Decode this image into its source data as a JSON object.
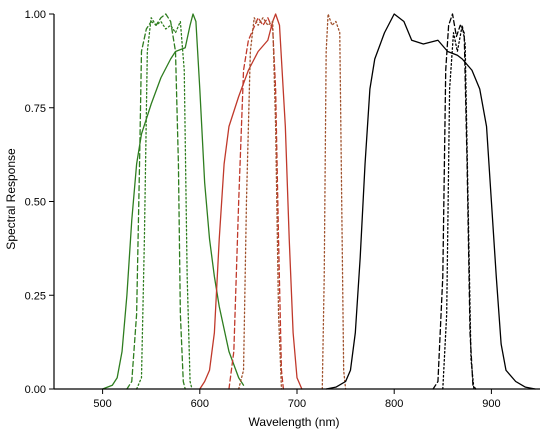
{
  "chart_data": {
    "type": "line",
    "title": "",
    "xlabel": "Wavelength (nm)",
    "ylabel": "Spectral Response",
    "xlim": [
      450,
      950
    ],
    "ylim": [
      0,
      1
    ],
    "x_ticks": [
      "500",
      "600",
      "700",
      "800",
      "900"
    ],
    "y_ticks": [
      "0.00",
      "0.25",
      "0.50",
      "0.75",
      "1.00"
    ],
    "grid": false,
    "legend": "none",
    "series": [
      {
        "color": "#2e7d1f",
        "dash": "solid",
        "points": [
          [
            500,
            0
          ],
          [
            510,
            0.01
          ],
          [
            515,
            0.03
          ],
          [
            520,
            0.1
          ],
          [
            525,
            0.25
          ],
          [
            530,
            0.45
          ],
          [
            535,
            0.6
          ],
          [
            540,
            0.68
          ],
          [
            550,
            0.76
          ],
          [
            560,
            0.83
          ],
          [
            570,
            0.88
          ],
          [
            575,
            0.9
          ],
          [
            585,
            0.91
          ],
          [
            590,
            0.97
          ],
          [
            593,
            1.0
          ],
          [
            596,
            0.98
          ],
          [
            600,
            0.8
          ],
          [
            605,
            0.55
          ],
          [
            610,
            0.4
          ],
          [
            615,
            0.3
          ],
          [
            620,
            0.22
          ],
          [
            630,
            0.1
          ],
          [
            640,
            0.03
          ],
          [
            645,
            0.01
          ]
        ]
      },
      {
        "color": "#2e7d1f",
        "dash": "dashed",
        "points": [
          [
            525,
            0
          ],
          [
            530,
            0.02
          ],
          [
            535,
            0.2
          ],
          [
            538,
            0.6
          ],
          [
            540,
            0.9
          ],
          [
            545,
            0.96
          ],
          [
            550,
            0.98
          ],
          [
            555,
            0.97
          ],
          [
            560,
            0.99
          ],
          [
            565,
            1.0
          ],
          [
            570,
            0.98
          ],
          [
            575,
            0.9
          ],
          [
            578,
            0.6
          ],
          [
            580,
            0.2
          ],
          [
            583,
            0.02
          ],
          [
            585,
            0
          ]
        ]
      },
      {
        "color": "#2e7d1f",
        "dash": "dotted",
        "points": [
          [
            535,
            0
          ],
          [
            540,
            0.03
          ],
          [
            543,
            0.4
          ],
          [
            546,
            0.9
          ],
          [
            550,
            0.99
          ],
          [
            555,
            0.97
          ],
          [
            560,
            0.98
          ],
          [
            565,
            0.96
          ],
          [
            570,
            0.97
          ],
          [
            575,
            0.95
          ],
          [
            580,
            0.98
          ],
          [
            584,
            0.85
          ],
          [
            587,
            0.3
          ],
          [
            590,
            0.02
          ],
          [
            592,
            0
          ]
        ]
      },
      {
        "color": "#c0392b",
        "dash": "solid",
        "points": [
          [
            600,
            0
          ],
          [
            605,
            0.02
          ],
          [
            610,
            0.05
          ],
          [
            615,
            0.15
          ],
          [
            620,
            0.4
          ],
          [
            625,
            0.6
          ],
          [
            630,
            0.7
          ],
          [
            640,
            0.78
          ],
          [
            650,
            0.85
          ],
          [
            660,
            0.9
          ],
          [
            670,
            0.93
          ],
          [
            675,
            0.98
          ],
          [
            678,
            1.0
          ],
          [
            682,
            0.97
          ],
          [
            688,
            0.7
          ],
          [
            692,
            0.4
          ],
          [
            696,
            0.15
          ],
          [
            700,
            0.03
          ],
          [
            705,
            0
          ]
        ]
      },
      {
        "color": "#c0392b",
        "dash": "dashed",
        "points": [
          [
            630,
            0
          ],
          [
            635,
            0.1
          ],
          [
            640,
            0.5
          ],
          [
            645,
            0.85
          ],
          [
            650,
            0.93
          ],
          [
            655,
            0.96
          ],
          [
            660,
            0.99
          ],
          [
            665,
            0.97
          ],
          [
            670,
            0.99
          ],
          [
            675,
            0.96
          ],
          [
            678,
            0.8
          ],
          [
            681,
            0.4
          ],
          [
            684,
            0.05
          ],
          [
            686,
            0
          ]
        ]
      },
      {
        "color": "#a0522d",
        "dash": "dotted",
        "points": [
          [
            640,
            0
          ],
          [
            645,
            0.05
          ],
          [
            648,
            0.5
          ],
          [
            652,
            0.9
          ],
          [
            656,
            0.99
          ],
          [
            660,
            0.97
          ],
          [
            665,
            0.99
          ],
          [
            670,
            0.97
          ],
          [
            675,
            0.98
          ],
          [
            678,
            0.7
          ],
          [
            681,
            0.2
          ],
          [
            684,
            0
          ]
        ]
      },
      {
        "color": "#a0522d",
        "dash": "dotted",
        "points": [
          [
            726,
            0
          ],
          [
            728,
            0.3
          ],
          [
            730,
            0.9
          ],
          [
            732,
            1.0
          ],
          [
            736,
            0.97
          ],
          [
            740,
            0.98
          ],
          [
            744,
            0.95
          ],
          [
            746,
            0.5
          ],
          [
            748,
            0.05
          ],
          [
            750,
            0
          ]
        ]
      },
      {
        "color": "#000000",
        "dash": "solid",
        "points": [
          [
            730,
            0
          ],
          [
            740,
            0.005
          ],
          [
            750,
            0.02
          ],
          [
            755,
            0.05
          ],
          [
            760,
            0.15
          ],
          [
            765,
            0.35
          ],
          [
            770,
            0.6
          ],
          [
            775,
            0.8
          ],
          [
            780,
            0.88
          ],
          [
            790,
            0.95
          ],
          [
            800,
            1.0
          ],
          [
            810,
            0.98
          ],
          [
            818,
            0.93
          ],
          [
            830,
            0.92
          ],
          [
            845,
            0.93
          ],
          [
            855,
            0.9
          ],
          [
            865,
            0.89
          ],
          [
            870,
            0.88
          ],
          [
            880,
            0.85
          ],
          [
            888,
            0.8
          ],
          [
            895,
            0.7
          ],
          [
            900,
            0.5
          ],
          [
            905,
            0.3
          ],
          [
            910,
            0.12
          ],
          [
            915,
            0.05
          ],
          [
            925,
            0.02
          ],
          [
            935,
            0.005
          ],
          [
            945,
            0
          ]
        ]
      },
      {
        "color": "#000000",
        "dash": "dashed",
        "points": [
          [
            840,
            0
          ],
          [
            845,
            0.02
          ],
          [
            850,
            0.3
          ],
          [
            853,
            0.85
          ],
          [
            856,
            0.97
          ],
          [
            860,
            1.0
          ],
          [
            864,
            0.94
          ],
          [
            868,
            0.97
          ],
          [
            872,
            0.95
          ],
          [
            875,
            0.6
          ],
          [
            878,
            0.15
          ],
          [
            881,
            0.01
          ],
          [
            884,
            0
          ]
        ]
      },
      {
        "color": "#000000",
        "dash": "dotted",
        "points": [
          [
            850,
            0
          ],
          [
            854,
            0.2
          ],
          [
            857,
            0.8
          ],
          [
            861,
            0.95
          ],
          [
            865,
            0.9
          ],
          [
            870,
            0.97
          ],
          [
            873,
            0.92
          ],
          [
            876,
            0.5
          ],
          [
            879,
            0.08
          ],
          [
            882,
            0
          ]
        ]
      }
    ]
  }
}
